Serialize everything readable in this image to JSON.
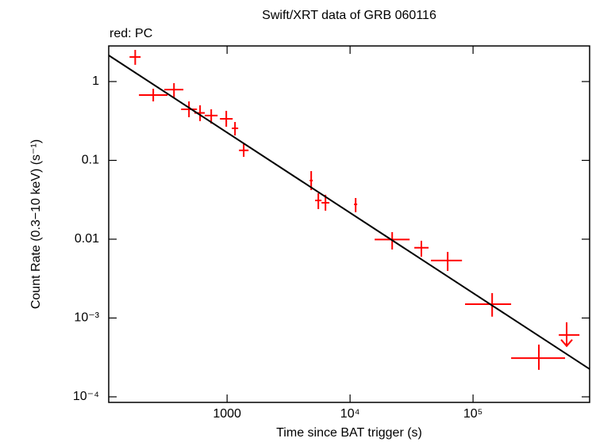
{
  "chart_data": {
    "type": "scatter",
    "title": "Swift/XRT data of GRB 060116",
    "subtitle": "red: PC",
    "x_label": "Time since BAT trigger (s)",
    "y_label": "Count Rate (0.3−10 keV) (s⁻¹)",
    "log_x": true,
    "log_y": true,
    "xlim": [
      109,
      887000
    ],
    "ylim": [
      8.5e-05,
      2.83
    ],
    "xticks": [
      1000,
      {
        "value": 10000,
        "label": "10⁴"
      },
      {
        "value": 100000,
        "label": "10⁵"
      }
    ],
    "yticks": [
      {
        "value": 0.0001,
        "label": "10⁻⁴"
      },
      {
        "value": 0.001,
        "label": "10⁻³"
      },
      0.01,
      0.1,
      1
    ],
    "points": {
      "color": "#ff0000",
      "x": [
        179,
        251,
        370,
        490,
        603,
        743,
        985,
        1160,
        1365,
        4830,
        5520,
        6310,
        11100,
        22000,
        38000,
        62200,
        143000,
        343000
      ],
      "x_low": [
        161,
        192,
        309,
        423,
        543,
        659,
        875,
        1094,
        1250,
        4690,
        5200,
        5860,
        10770,
        15850,
        33300,
        45500,
        86100,
        204000
      ],
      "x_high": [
        198,
        328,
        441,
        569,
        659,
        837,
        1110,
        1231,
        1494,
        4975,
        5860,
        6790,
        11430,
        30500,
        43500,
        81300,
        204000,
        560000
      ],
      "y": [
        2.05,
        0.675,
        0.79,
        0.445,
        0.4,
        0.37,
        0.337,
        0.255,
        0.134,
        0.0555,
        0.031,
        0.029,
        0.0277,
        0.0099,
        0.0078,
        0.00536,
        0.0015,
        0.00031
      ],
      "y_low": [
        1.63,
        0.56,
        0.63,
        0.353,
        0.315,
        0.293,
        0.267,
        0.207,
        0.111,
        0.042,
        0.0241,
        0.023,
        0.022,
        0.0074,
        0.006,
        0.00396,
        0.00104,
        0.00022
      ],
      "y_high": [
        2.52,
        0.81,
        0.955,
        0.56,
        0.5,
        0.445,
        0.425,
        0.307,
        0.161,
        0.0731,
        0.0383,
        0.0366,
        0.0333,
        0.0123,
        0.00955,
        0.0069,
        0.00207,
        0.00046
      ]
    },
    "upper_limit": {
      "color": "#ff0000",
      "x": 577000,
      "x_low": 498000,
      "x_high": 733000,
      "y": 0.00061
    },
    "fit": {
      "color": "#000000",
      "x": [
        109,
        887000
      ],
      "y": [
        2.15,
        0.000225
      ]
    }
  }
}
